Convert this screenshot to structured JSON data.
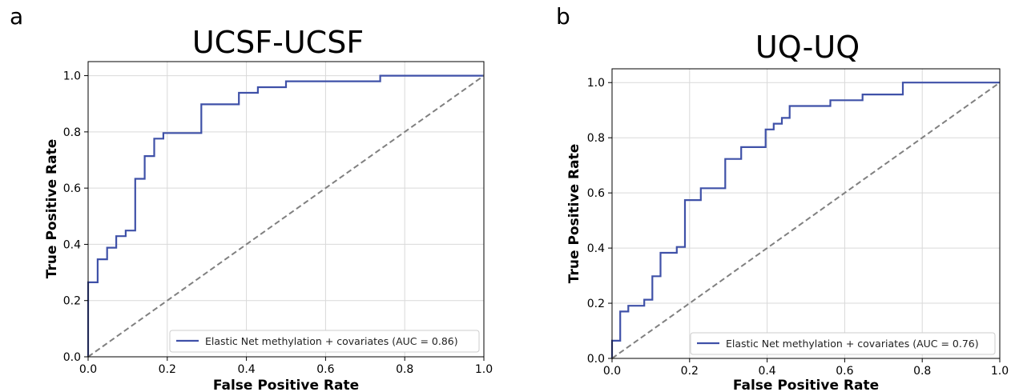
{
  "chart_data": [
    {
      "type": "line",
      "panel": "a",
      "title": "UCSF-UCSF",
      "xlabel": "False Positive Rate",
      "ylabel": "True Positive Rate",
      "xlim": [
        0,
        1
      ],
      "ylim": [
        0,
        1.05
      ],
      "xticks": [
        "0.0",
        "0.2",
        "0.4",
        "0.6",
        "0.8",
        "1.0"
      ],
      "yticks": [
        "0.0",
        "0.2",
        "0.4",
        "0.6",
        "0.8",
        "1.0"
      ],
      "grid": true,
      "legend_position": "lower-right",
      "series": [
        {
          "name": "Elastic Net methylation + covariates (AUC = 0.86)",
          "step": true,
          "color": "#3f51a8",
          "x": [
            0,
            0,
            0.024,
            0.024,
            0.048,
            0.048,
            0.071,
            0.071,
            0.095,
            0.095,
            0.119,
            0.119,
            0.143,
            0.143,
            0.167,
            0.167,
            0.19,
            0.19,
            0.286,
            0.286,
            0.381,
            0.381,
            0.429,
            0.429,
            0.5,
            0.5,
            0.738,
            0.738,
            1.0
          ],
          "y": [
            0,
            0.265,
            0.265,
            0.347,
            0.347,
            0.388,
            0.388,
            0.429,
            0.429,
            0.449,
            0.449,
            0.633,
            0.633,
            0.714,
            0.714,
            0.776,
            0.776,
            0.796,
            0.796,
            0.898,
            0.898,
            0.939,
            0.939,
            0.959,
            0.959,
            0.98,
            0.98,
            1.0,
            1.0
          ]
        },
        {
          "name": "",
          "style": "dashed",
          "color": "#808080",
          "x": [
            0,
            1
          ],
          "y": [
            0,
            1
          ]
        }
      ]
    },
    {
      "type": "line",
      "panel": "b",
      "title": "UQ-UQ",
      "xlabel": "False Positive Rate",
      "ylabel": "True Positive Rate",
      "xlim": [
        0,
        1
      ],
      "ylim": [
        0,
        1.05
      ],
      "xticks": [
        "0.0",
        "0.2",
        "0.4",
        "0.6",
        "0.8",
        "1.0"
      ],
      "yticks": [
        "0.0",
        "0.2",
        "0.4",
        "0.6",
        "0.8",
        "1.0"
      ],
      "grid": true,
      "legend_position": "lower-right",
      "series": [
        {
          "name": "Elastic Net methylation + covariates (AUC = 0.76)",
          "step": true,
          "color": "#3f51a8",
          "x": [
            0,
            0,
            0.021,
            0.021,
            0.042,
            0.042,
            0.083,
            0.083,
            0.104,
            0.104,
            0.125,
            0.125,
            0.167,
            0.167,
            0.188,
            0.188,
            0.229,
            0.229,
            0.292,
            0.292,
            0.333,
            0.333,
            0.396,
            0.396,
            0.417,
            0.417,
            0.438,
            0.438,
            0.458,
            0.458,
            0.563,
            0.563,
            0.646,
            0.646,
            0.75,
            0.75,
            1.0
          ],
          "y": [
            0,
            0.064,
            0.064,
            0.17,
            0.17,
            0.191,
            0.191,
            0.213,
            0.213,
            0.298,
            0.298,
            0.383,
            0.383,
            0.404,
            0.404,
            0.574,
            0.574,
            0.617,
            0.617,
            0.723,
            0.723,
            0.766,
            0.766,
            0.83,
            0.83,
            0.851,
            0.851,
            0.872,
            0.872,
            0.915,
            0.915,
            0.936,
            0.936,
            0.957,
            0.957,
            1.0,
            1.0
          ]
        },
        {
          "name": "",
          "style": "dashed",
          "color": "#808080",
          "x": [
            0,
            1
          ],
          "y": [
            0,
            1
          ]
        }
      ]
    }
  ]
}
